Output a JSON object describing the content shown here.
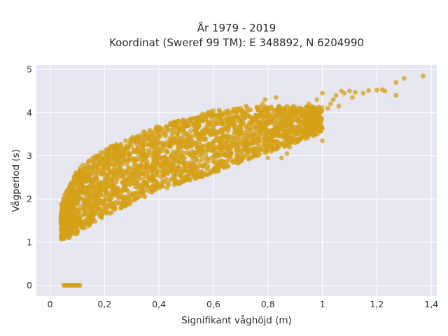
{
  "chart_data": {
    "type": "scatter",
    "title_line1": "År 1979 - 2019",
    "title_line2": "Koordinat (Sweref 99 TM): E 348892, N 6204990",
    "xlabel": "Signifikant våghöjd (m)",
    "ylabel": "Vågperiod (s)",
    "xlim": [
      -0.05,
      1.42
    ],
    "ylim": [
      -0.25,
      5.1
    ],
    "x_ticks": [
      0,
      0.2,
      0.4,
      0.6,
      0.8,
      1,
      1.2,
      1.4
    ],
    "x_tick_labels": [
      "0",
      "0,2",
      "0,4",
      "0,6",
      "0,8",
      "1",
      "1,2",
      "1,4"
    ],
    "y_ticks": [
      0,
      1,
      2,
      3,
      4,
      5
    ],
    "y_tick_labels": [
      "0",
      "1",
      "2",
      "3",
      "4",
      "5"
    ],
    "grid": true,
    "marker_color": "#d4a017",
    "plot_bg": "#e5e6f0",
    "grid_color": "#ffffff",
    "zero_points": [
      [
        0.05,
        0
      ],
      [
        0.055,
        0
      ],
      [
        0.06,
        0
      ],
      [
        0.065,
        0
      ],
      [
        0.07,
        0
      ],
      [
        0.075,
        0
      ],
      [
        0.08,
        0
      ],
      [
        0.085,
        0
      ],
      [
        0.09,
        0
      ],
      [
        0.095,
        0
      ],
      [
        0.1,
        0
      ],
      [
        0.105,
        0
      ],
      [
        0.11,
        0
      ]
    ],
    "outlier_points": [
      [
        1.37,
        4.85
      ],
      [
        1.3,
        4.79
      ],
      [
        1.27,
        4.7
      ],
      [
        1.27,
        4.4
      ],
      [
        1.23,
        4.5
      ],
      [
        1.22,
        4.53
      ],
      [
        1.2,
        4.52
      ],
      [
        1.17,
        4.51
      ],
      [
        1.15,
        4.45
      ],
      [
        1.12,
        4.47
      ],
      [
        1.1,
        4.5
      ],
      [
        1.08,
        4.45
      ],
      [
        1.07,
        4.5
      ],
      [
        1.05,
        4.4
      ],
      [
        1.04,
        4.3
      ],
      [
        1.03,
        4.2
      ],
      [
        1.02,
        4.1
      ],
      [
        1.0,
        4.45
      ],
      [
        0.98,
        4.3
      ],
      [
        0.97,
        4.1
      ],
      [
        0.95,
        4.2
      ],
      [
        1.0,
        3.35
      ],
      [
        0.95,
        3.9
      ],
      [
        0.93,
        3.8
      ],
      [
        0.9,
        3.3
      ],
      [
        0.88,
        3.2
      ],
      [
        0.87,
        3.05
      ],
      [
        0.85,
        2.95
      ],
      [
        0.8,
        2.95
      ],
      [
        0.82,
        3.5
      ],
      [
        0.83,
        4.35
      ],
      [
        0.79,
        4.3
      ],
      [
        0.78,
        4.2
      ],
      [
        0.76,
        4.12
      ],
      [
        0.72,
        4.15
      ],
      [
        0.65,
        2.75
      ],
      [
        0.6,
        4.05
      ],
      [
        0.55,
        3.9
      ],
      [
        0.45,
        3.7
      ],
      [
        0.7,
        4.1
      ],
      [
        1.11,
        4.35
      ],
      [
        1.06,
        4.15
      ],
      [
        0.04,
        1.55
      ],
      [
        0.05,
        1.45
      ],
      [
        0.05,
        1.6
      ],
      [
        0.06,
        1.35
      ],
      [
        0.06,
        1.2
      ],
      [
        0.07,
        1.1
      ]
    ],
    "cluster": {
      "lower_curve": [
        [
          0.04,
          1.05
        ],
        [
          0.1,
          1.2
        ],
        [
          0.2,
          1.6
        ],
        [
          0.3,
          1.9
        ],
        [
          0.4,
          2.2
        ],
        [
          0.5,
          2.4
        ],
        [
          0.6,
          2.6
        ],
        [
          0.7,
          2.85
        ],
        [
          0.8,
          3.05
        ],
        [
          0.9,
          3.3
        ],
        [
          1.0,
          3.55
        ]
      ],
      "upper_curve": [
        [
          0.04,
          1.9
        ],
        [
          0.1,
          2.7
        ],
        [
          0.2,
          3.15
        ],
        [
          0.3,
          3.45
        ],
        [
          0.4,
          3.7
        ],
        [
          0.5,
          3.85
        ],
        [
          0.6,
          4.05
        ],
        [
          0.7,
          4.1
        ],
        [
          0.8,
          4.15
        ],
        [
          0.9,
          4.15
        ],
        [
          1.0,
          4.15
        ]
      ]
    }
  }
}
